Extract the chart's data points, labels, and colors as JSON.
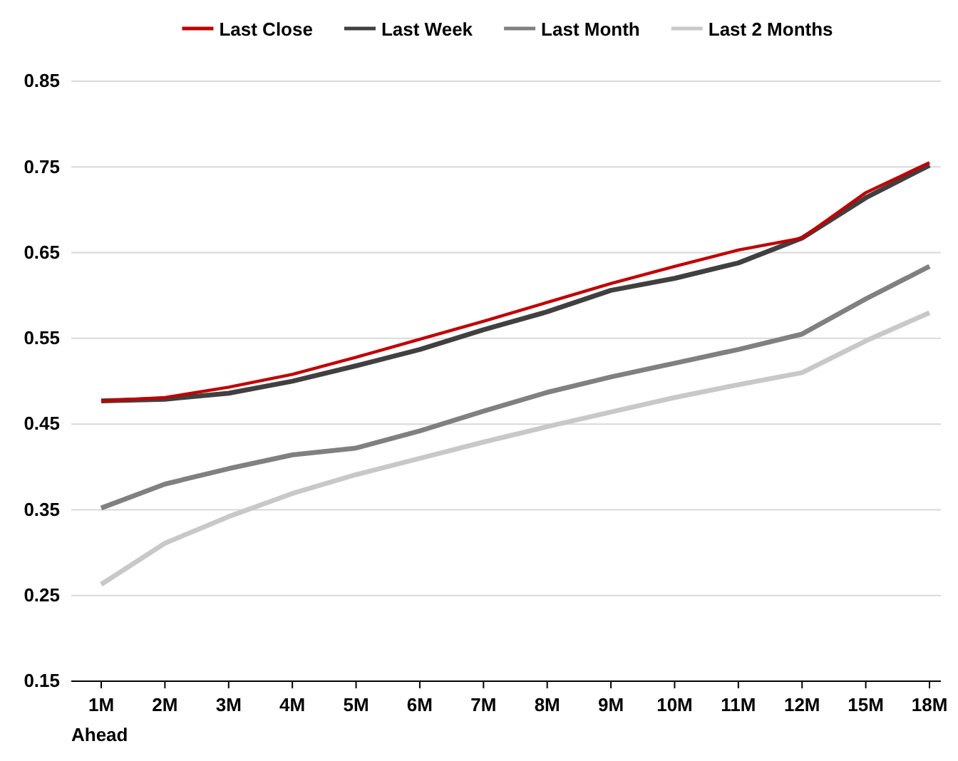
{
  "chart_data": {
    "type": "line",
    "xlabel": "Ahead",
    "categories": [
      "1M",
      "2M",
      "3M",
      "4M",
      "5M",
      "6M",
      "7M",
      "8M",
      "9M",
      "10M",
      "11M",
      "12M",
      "15M",
      "18M"
    ],
    "series": [
      {
        "name": "Last Close",
        "color": "#c00000",
        "values": [
          0.477,
          0.481,
          0.493,
          0.508,
          0.528,
          0.549,
          0.57,
          0.592,
          0.614,
          0.634,
          0.653,
          0.667,
          0.72,
          0.755
        ]
      },
      {
        "name": "Last Week",
        "color": "#404040",
        "values": [
          0.477,
          0.479,
          0.486,
          0.5,
          0.518,
          0.537,
          0.56,
          0.581,
          0.606,
          0.62,
          0.638,
          0.667,
          0.714,
          0.752
        ]
      },
      {
        "name": "Last Month",
        "color": "#808080",
        "values": [
          0.352,
          0.38,
          0.398,
          0.414,
          0.422,
          0.442,
          0.465,
          0.487,
          0.505,
          0.521,
          0.537,
          0.555,
          0.596,
          0.634
        ]
      },
      {
        "name": "Last 2 Months",
        "color": "#c8c8c8",
        "values": [
          0.263,
          0.311,
          0.342,
          0.369,
          0.391,
          0.41,
          0.429,
          0.447,
          0.464,
          0.481,
          0.496,
          0.51,
          0.547,
          0.58
        ]
      }
    ],
    "ylim": [
      0.15,
      0.85
    ],
    "yticks": [
      0.15,
      0.25,
      0.35,
      0.45,
      0.55,
      0.65,
      0.75,
      0.85
    ],
    "grid": "y",
    "legend": "top",
    "marker": "none",
    "line_style": "solid"
  }
}
